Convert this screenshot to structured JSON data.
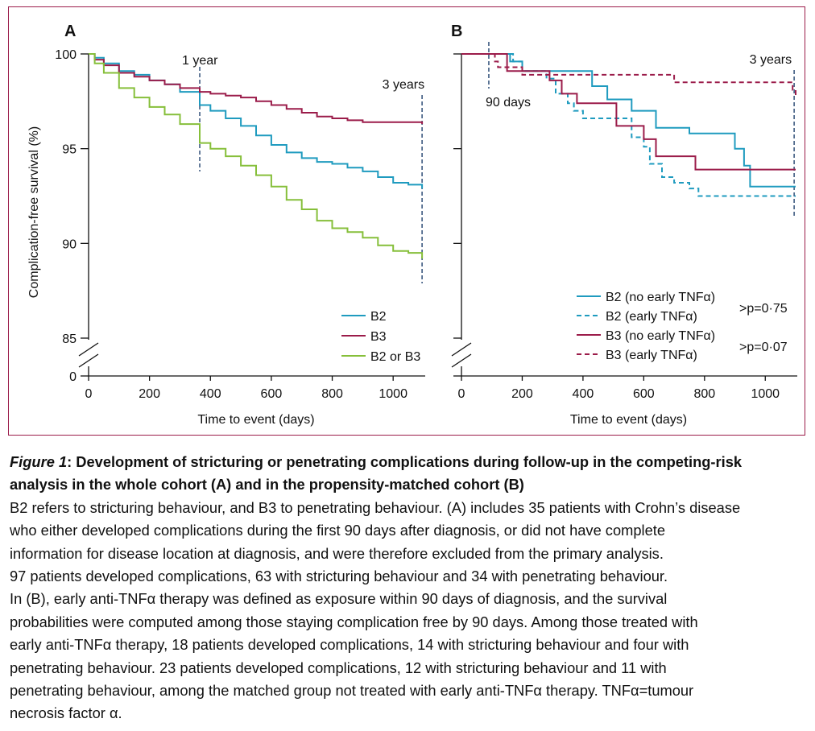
{
  "colors": {
    "frame": "#9b1c4a",
    "B2": "#1f9bbf",
    "B3": "#9b1c4a",
    "B2_or_B3": "#86bf3a",
    "marker": "#3d5a80"
  },
  "chart_data": [
    {
      "type": "line",
      "panel_label": "A",
      "ylabel": "Complication-free survival (%)",
      "xlabel": "Time to event (days)",
      "xlim": [
        0,
        1100
      ],
      "ylim_display": [
        85,
        100
      ],
      "y_axis_break": true,
      "x_ticks": [
        "0",
        "200",
        "400",
        "600",
        "800",
        "1000"
      ],
      "y_ticks": [
        "100",
        "95",
        "90",
        "85",
        "0"
      ],
      "grid": false,
      "legend_position": "bottom-right",
      "markers": [
        {
          "x": 365,
          "label": "1 year"
        },
        {
          "x": 1095,
          "label": "3 years"
        }
      ],
      "series": [
        {
          "name": "B2",
          "color_key": "B2",
          "style": "solid",
          "x": [
            0,
            20,
            50,
            100,
            150,
            200,
            250,
            300,
            365,
            400,
            450,
            500,
            550,
            600,
            650,
            700,
            750,
            800,
            850,
            900,
            950,
            1000,
            1050,
            1095
          ],
          "y": [
            100,
            99.8,
            99.5,
            99.1,
            98.9,
            98.6,
            98.4,
            98.0,
            97.3,
            97.0,
            96.6,
            96.2,
            95.7,
            95.2,
            94.8,
            94.5,
            94.3,
            94.2,
            94.0,
            93.8,
            93.5,
            93.2,
            93.1,
            92.9
          ]
        },
        {
          "name": "B3",
          "color_key": "B3",
          "style": "solid",
          "x": [
            0,
            20,
            50,
            100,
            150,
            200,
            250,
            300,
            365,
            400,
            450,
            500,
            550,
            600,
            650,
            700,
            750,
            800,
            850,
            900,
            950,
            1000,
            1050,
            1095
          ],
          "y": [
            100,
            99.7,
            99.4,
            99.0,
            98.8,
            98.6,
            98.4,
            98.2,
            98.0,
            97.9,
            97.8,
            97.7,
            97.5,
            97.3,
            97.1,
            96.9,
            96.7,
            96.6,
            96.5,
            96.4,
            96.4,
            96.4,
            96.4,
            96.3
          ]
        },
        {
          "name": "B2 or B3",
          "color_key": "B2_or_B3",
          "style": "solid",
          "x": [
            0,
            20,
            50,
            100,
            150,
            200,
            250,
            300,
            365,
            400,
            450,
            500,
            550,
            600,
            650,
            700,
            750,
            800,
            850,
            900,
            950,
            1000,
            1050,
            1095
          ],
          "y": [
            100,
            99.5,
            99.0,
            98.2,
            97.7,
            97.2,
            96.8,
            96.3,
            95.3,
            95.0,
            94.6,
            94.1,
            93.6,
            93.0,
            92.3,
            91.8,
            91.2,
            90.8,
            90.6,
            90.3,
            89.9,
            89.6,
            89.5,
            89.2
          ]
        }
      ]
    },
    {
      "type": "line",
      "panel_label": "B",
      "xlabel": "Time to event (days)",
      "xlim": [
        0,
        1100
      ],
      "ylim_display": [
        85,
        100
      ],
      "y_axis_break": true,
      "x_ticks": [
        "0",
        "200",
        "400",
        "600",
        "800",
        "1000"
      ],
      "grid": false,
      "legend_position": "bottom-right",
      "markers": [
        {
          "x": 90,
          "label": "90 days"
        },
        {
          "x": 1095,
          "label": "3 years"
        }
      ],
      "p_values": [
        {
          "text": ">p=0·75",
          "groups": [
            "B2 (no early TNFα)",
            "B2 (early TNFα)"
          ]
        },
        {
          "text": ">p=0·07",
          "groups": [
            "B3 (no early TNFα)",
            "B3 (early TNFα)"
          ]
        }
      ],
      "series": [
        {
          "name": "B2 (no early TNFα)",
          "color_key": "B2",
          "style": "solid",
          "x": [
            0,
            160,
            200,
            300,
            430,
            480,
            560,
            640,
            750,
            900,
            930,
            950,
            1100
          ],
          "y": [
            100,
            99.6,
            99.1,
            99.1,
            98.3,
            97.6,
            97.0,
            96.1,
            95.8,
            95.0,
            94.1,
            93.0,
            93.0
          ]
        },
        {
          "name": "B2 (early TNFα)",
          "color_key": "B2",
          "style": "dashed",
          "x": [
            0,
            170,
            200,
            280,
            310,
            350,
            370,
            400,
            460,
            560,
            600,
            620,
            660,
            700,
            750,
            780,
            1100
          ],
          "y": [
            100,
            99.6,
            99.1,
            98.7,
            97.9,
            97.4,
            97.0,
            96.6,
            96.6,
            95.6,
            95.1,
            94.2,
            93.5,
            93.2,
            92.9,
            92.5,
            92.5
          ]
        },
        {
          "name": "B3 (no early TNFα)",
          "color_key": "B3",
          "style": "solid",
          "x": [
            0,
            150,
            200,
            290,
            330,
            380,
            430,
            510,
            600,
            640,
            680,
            770,
            1100
          ],
          "y": [
            100,
            99.1,
            99.1,
            98.6,
            97.9,
            97.4,
            97.4,
            96.2,
            95.5,
            94.6,
            94.6,
            93.9,
            93.9
          ]
        },
        {
          "name": "B3 (early TNFα)",
          "color_key": "B3",
          "style": "dashed",
          "x": [
            0,
            110,
            120,
            200,
            680,
            700,
            1090,
            1100
          ],
          "y": [
            100,
            99.6,
            99.3,
            98.9,
            98.9,
            98.5,
            98.1,
            97.8
          ]
        }
      ]
    }
  ],
  "caption": {
    "figure_label": "Figure 1",
    "title_lines": [
      ": Development of stricturing or penetrating complications during follow-up in the competing-risk",
      "analysis in the whole cohort (A) and in the propensity-matched cohort (B)"
    ],
    "body_lines": [
      "B2 refers to stricturing behaviour, and B3 to penetrating behaviour. (A) includes 35 patients with Crohn’s disease",
      "who either developed complications during the first 90 days after diagnosis, or did not have complete",
      "information for disease location at diagnosis, and were therefore excluded from the primary analysis.",
      "97 patients developed complications, 63 with stricturing behaviour and 34 with penetrating behaviour.",
      "In (B), early anti-TNFα therapy was defined as exposure within 90 days of diagnosis, and the survival",
      "probabilities were computed among those staying complication free by 90 days. Among those treated with",
      "early anti-TNFα therapy, 18 patients developed complications, 14 with stricturing behaviour and four with",
      "penetrating behaviour. 23 patients developed complications, 12 with stricturing behaviour and 11 with",
      "penetrating behaviour, among the matched group not treated with early anti-TNFα therapy. TNFα=tumour",
      "necrosis factor α."
    ]
  }
}
